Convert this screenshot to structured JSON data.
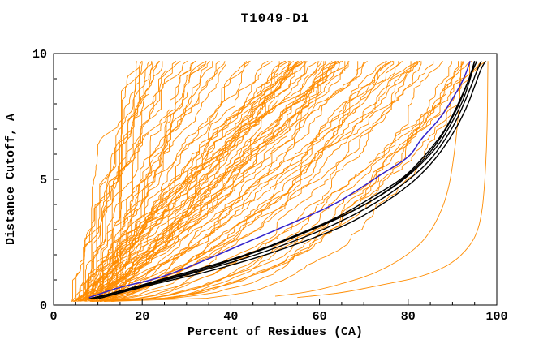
{
  "chart_data": {
    "type": "line",
    "title": "T1049-D1",
    "xlabel": "Percent of Residues (CA)",
    "ylabel": "Distance Cutoff, A",
    "xlim": [
      0,
      100
    ],
    "ylim": [
      0,
      10
    ],
    "x_major_ticks": [
      0,
      20,
      40,
      60,
      80,
      100
    ],
    "x_minor_step": 5,
    "y_major_ticks": [
      0,
      5,
      10
    ],
    "y_minor_step": 1,
    "grid": false,
    "legend_position": "none",
    "colors": {
      "ensemble": "#ff8c00",
      "best": "#000000",
      "reference": "#3322cc",
      "frame": "#000000",
      "text": "#000000"
    },
    "ensemble": {
      "name": "predicted-model-cutoff-curves",
      "color_key": "ensemble",
      "count": 88,
      "seed": 1337,
      "x_start_range": [
        4,
        13
      ],
      "x_end_range": [
        18,
        97
      ],
      "y_start": 0.15,
      "y_end": 9.7
    },
    "extra_curves": [
      {
        "name": "outlier-model-right-edge",
        "color_key": "ensemble",
        "points": [
          [
            55,
            0.3
          ],
          [
            65,
            0.5
          ],
          [
            74,
            0.8
          ],
          [
            82,
            1.1
          ],
          [
            88,
            1.5
          ],
          [
            92,
            2.0
          ],
          [
            95,
            2.7
          ],
          [
            96.5,
            3.6
          ],
          [
            97.3,
            5.0
          ],
          [
            97.8,
            7.0
          ],
          [
            98,
            9.7
          ]
        ]
      },
      {
        "name": "outlier-model-2",
        "color_key": "ensemble",
        "points": [
          [
            50,
            0.35
          ],
          [
            58,
            0.55
          ],
          [
            65,
            0.85
          ],
          [
            72,
            1.25
          ],
          [
            78,
            1.8
          ],
          [
            83,
            2.5
          ],
          [
            86.5,
            3.4
          ],
          [
            89,
            4.6
          ],
          [
            90.5,
            6.2
          ],
          [
            91.5,
            8.0
          ],
          [
            92,
            9.7
          ]
        ]
      }
    ],
    "highlight_series": [
      {
        "name": "best-model-1",
        "color_key": "best",
        "points": [
          [
            9,
            0.25
          ],
          [
            18,
            0.7
          ],
          [
            28,
            1.2
          ],
          [
            38,
            1.7
          ],
          [
            48,
            2.3
          ],
          [
            58,
            3.0
          ],
          [
            67,
            3.7
          ],
          [
            75,
            4.5
          ],
          [
            81,
            5.3
          ],
          [
            86,
            6.2
          ],
          [
            89,
            7.0
          ],
          [
            92,
            8.0
          ],
          [
            94,
            9.0
          ],
          [
            95,
            9.7
          ]
        ]
      },
      {
        "name": "best-model-2",
        "color_key": "best",
        "points": [
          [
            10,
            0.25
          ],
          [
            20,
            0.75
          ],
          [
            31,
            1.25
          ],
          [
            42,
            1.8
          ],
          [
            52,
            2.4
          ],
          [
            62,
            3.1
          ],
          [
            71,
            3.9
          ],
          [
            78,
            4.7
          ],
          [
            84,
            5.6
          ],
          [
            88,
            6.5
          ],
          [
            91,
            7.4
          ],
          [
            93.5,
            8.4
          ],
          [
            95.5,
            9.3
          ],
          [
            96.5,
            9.7
          ]
        ]
      },
      {
        "name": "best-model-3",
        "color_key": "best",
        "points": [
          [
            8,
            0.25
          ],
          [
            16,
            0.6
          ],
          [
            25,
            1.05
          ],
          [
            35,
            1.55
          ],
          [
            45,
            2.1
          ],
          [
            55,
            2.8
          ],
          [
            64,
            3.5
          ],
          [
            72,
            4.3
          ],
          [
            79,
            5.1
          ],
          [
            84,
            6.0
          ],
          [
            88,
            6.9
          ],
          [
            91,
            7.9
          ],
          [
            93.5,
            8.9
          ],
          [
            95,
            9.7
          ]
        ]
      },
      {
        "name": "best-model-4",
        "color_key": "best",
        "points": [
          [
            11,
            0.3
          ],
          [
            22,
            0.8
          ],
          [
            34,
            1.3
          ],
          [
            46,
            1.9
          ],
          [
            56,
            2.5
          ],
          [
            66,
            3.2
          ],
          [
            74,
            4.0
          ],
          [
            81,
            4.9
          ],
          [
            86,
            5.8
          ],
          [
            90,
            6.8
          ],
          [
            93,
            7.8
          ],
          [
            95,
            8.7
          ],
          [
            96.5,
            9.4
          ],
          [
            97.5,
            9.7
          ]
        ]
      },
      {
        "name": "best-model-5",
        "color_key": "best",
        "points": [
          [
            9,
            0.25
          ],
          [
            17,
            0.65
          ],
          [
            27,
            1.1
          ],
          [
            37,
            1.6
          ],
          [
            47,
            2.2
          ],
          [
            57,
            2.9
          ],
          [
            66,
            3.6
          ],
          [
            74,
            4.4
          ],
          [
            80,
            5.2
          ],
          [
            85,
            6.1
          ],
          [
            88.5,
            7.0
          ],
          [
            91.5,
            8.0
          ],
          [
            94,
            9.1
          ],
          [
            95.5,
            9.7
          ]
        ]
      },
      {
        "name": "reference-model",
        "color_key": "reference",
        "points": [
          [
            8,
            0.3
          ],
          [
            15,
            0.7
          ],
          [
            24,
            1.1
          ],
          [
            33,
            1.7
          ],
          [
            43,
            2.45
          ],
          [
            53,
            3.2
          ],
          [
            62,
            3.9
          ],
          [
            67,
            4.4
          ],
          [
            74,
            5.2
          ],
          [
            80,
            5.9
          ],
          [
            83,
            6.6
          ],
          [
            87,
            7.4
          ],
          [
            90,
            8.2
          ],
          [
            92.5,
            9.0
          ],
          [
            94,
            9.7
          ]
        ]
      }
    ]
  }
}
